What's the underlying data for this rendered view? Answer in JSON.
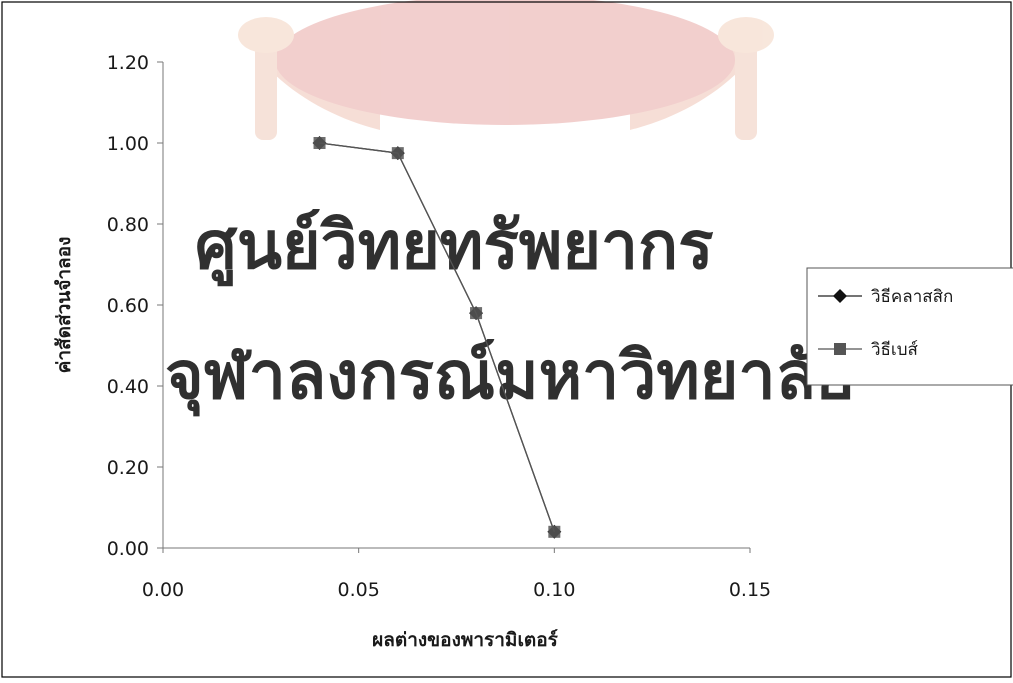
{
  "chart_data": {
    "type": "line",
    "title": "",
    "xlabel": "ผลต่างของพารามิเตอร์",
    "ylabel": "ค่าสัดส่วนจำลอง",
    "xlim": [
      0,
      0.15
    ],
    "ylim": [
      0,
      1.2
    ],
    "x_ticks": [
      "0.00",
      "0.05",
      "0.10",
      "0.15"
    ],
    "y_ticks": [
      "0.00",
      "0.20",
      "0.40",
      "0.60",
      "0.80",
      "1.00",
      "1.20"
    ],
    "grid": false,
    "legend_position": "right",
    "series": [
      {
        "name": "วิธีคลาสสิก",
        "marker": "diamond",
        "color": "#222222",
        "x": [
          0.04,
          0.06,
          0.08,
          0.1
        ],
        "y": [
          1.0,
          0.975,
          0.58,
          0.04
        ]
      },
      {
        "name": "วิธีเบส์",
        "marker": "square",
        "color": "#555555",
        "x": [
          0.04,
          0.06,
          0.08,
          0.1
        ],
        "y": [
          1.0,
          0.975,
          0.58,
          0.04
        ]
      }
    ]
  },
  "watermark": {
    "line1": "ศูนย์วิทยทรัพยากร",
    "line2": "จุฬาลงกรณ์มหาวิทยาลัย",
    "color": "#e5aaae",
    "seal_color": "#e8b8ad"
  }
}
